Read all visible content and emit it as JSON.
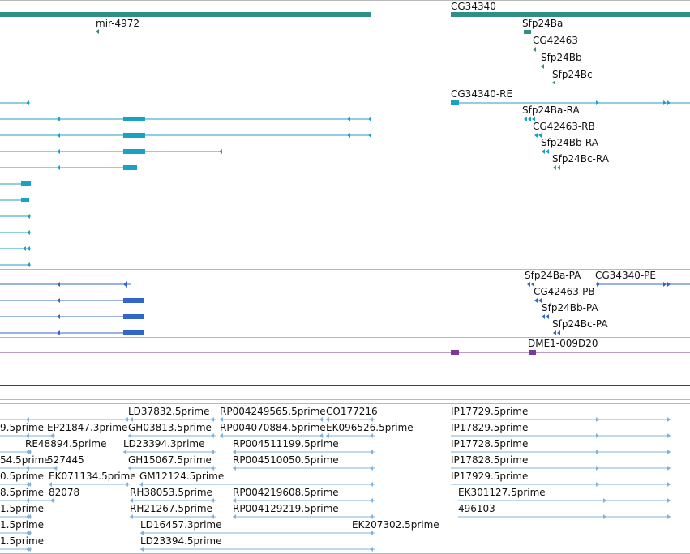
{
  "colors": {
    "gene": "#2f8f87",
    "transcript": "#1aa2c3",
    "protein": "#3366cc",
    "repeat": "#7a3a9a",
    "est": "#7fb3db",
    "divider": "#b8b8b8",
    "purple_line": "#5b2a7a"
  },
  "track_gene": {
    "labels": [
      "CG34340",
      "mir-4972",
      "Sfp24Ba",
      "CG42463",
      "Sfp24Bb",
      "Sfp24Bc"
    ]
  },
  "track_transcript": {
    "labels": [
      "CG34340-RE",
      "Sfp24Ba-RA",
      "CG42463-RB",
      "Sfp24Bb-RA",
      "Sfp24Bc-RA"
    ]
  },
  "track_protein": {
    "labels": [
      "Sfp24Ba-PA",
      "CG34340-PE",
      "CG42463-PB",
      "Sfp24Bb-PA",
      "Sfp24Bc-PA"
    ]
  },
  "track_repeat": {
    "labels": [
      "DME1-009D20"
    ]
  },
  "track_est": {
    "labels": [
      "LD37832.5prime",
      "RP004249565.5prime",
      "CO177216",
      "IP17729.5prime",
      "9.5prime",
      "EP21847.3prime",
      "GH03813.5prime",
      "RP004070884.5prime",
      "EK096526.5prime",
      "IP17829.5prime",
      "RE48894.5prime",
      "LD23394.3prime",
      "RP004511199.5prime",
      "IP17728.5prime",
      "54.5prime",
      "527445",
      "GH15067.5prime",
      "RP004510050.5prime",
      "IP17828.5prime",
      "0.5prime",
      "EK071134.5prime",
      "GM12124.5prime",
      "IP17929.5prime",
      "8.5prime",
      "82078",
      "RH38053.5prime",
      "RP004219608.5prime",
      "EK301127.5prime",
      "1.5prime",
      "RH21267.5prime",
      "RP004129219.5prime",
      "496103",
      "1.5prime",
      "LD16457.3prime",
      "EK207302.5prime",
      "1.5prime",
      "LD23394.5prime"
    ]
  }
}
